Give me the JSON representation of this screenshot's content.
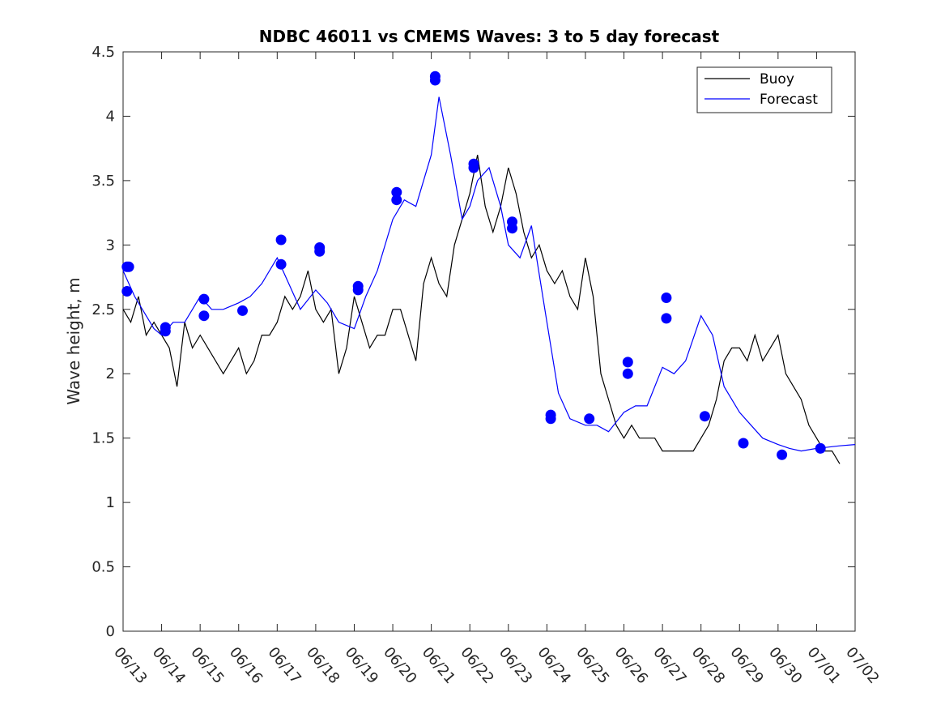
{
  "chart_data": {
    "type": "line",
    "title": "NDBC 46011 vs CMEMS Waves: 3 to 5 day forecast",
    "ylabel": "Wave height, m",
    "xlabel": "",
    "xlim": [
      0,
      19
    ],
    "ylim": [
      0,
      4.5
    ],
    "grid": false,
    "legend_position": "top-right",
    "x_tick_labels": [
      "06/13",
      "06/14",
      "06/15",
      "06/16",
      "06/17",
      "06/18",
      "06/19",
      "06/20",
      "06/21",
      "06/22",
      "06/23",
      "06/24",
      "06/25",
      "06/26",
      "06/27",
      "06/28",
      "06/29",
      "06/30",
      "07/01",
      "07/02"
    ],
    "y_ticks": [
      0,
      0.5,
      1,
      1.5,
      2,
      2.5,
      3,
      3.5,
      4,
      4.5
    ],
    "y_tick_labels": [
      "0",
      "0.5",
      "1",
      "1.5",
      "2",
      "2.5",
      "3",
      "3.5",
      "4",
      "4.5"
    ],
    "legend": [
      "Buoy",
      "Forecast"
    ],
    "colors": {
      "buoy": "#000000",
      "forecast": "#0000ff",
      "marker": "#0000ff"
    },
    "series": [
      {
        "name": "Buoy",
        "x": [
          0,
          0.2,
          0.4,
          0.6,
          0.8,
          1.0,
          1.2,
          1.4,
          1.6,
          1.8,
          2.0,
          2.2,
          2.4,
          2.6,
          2.8,
          3.0,
          3.2,
          3.4,
          3.6,
          3.8,
          4.0,
          4.2,
          4.4,
          4.6,
          4.8,
          5.0,
          5.2,
          5.4,
          5.6,
          5.8,
          6.0,
          6.2,
          6.4,
          6.6,
          6.8,
          7.0,
          7.2,
          7.4,
          7.6,
          7.8,
          8.0,
          8.2,
          8.4,
          8.6,
          8.8,
          9.0,
          9.2,
          9.4,
          9.6,
          9.8,
          10.0,
          10.2,
          10.4,
          10.6,
          10.8,
          11.0,
          11.2,
          11.4,
          11.6,
          11.8,
          12.0,
          12.2,
          12.4,
          12.6,
          12.8,
          13.0,
          13.2,
          13.4,
          13.6,
          13.8,
          14.0,
          14.2,
          14.4,
          14.6,
          14.8,
          15.0,
          15.2,
          15.4,
          15.6,
          15.8,
          16.0,
          16.2,
          16.4,
          16.6,
          16.8,
          17.0,
          17.2,
          17.4,
          17.6,
          17.8,
          18.0,
          18.2,
          18.4,
          18.6
        ],
        "y": [
          2.5,
          2.4,
          2.6,
          2.3,
          2.4,
          2.3,
          2.2,
          1.9,
          2.4,
          2.2,
          2.3,
          2.2,
          2.1,
          2.0,
          2.1,
          2.2,
          2.0,
          2.1,
          2.3,
          2.3,
          2.4,
          2.6,
          2.5,
          2.6,
          2.8,
          2.5,
          2.4,
          2.5,
          2.0,
          2.2,
          2.6,
          2.4,
          2.2,
          2.3,
          2.3,
          2.5,
          2.5,
          2.3,
          2.1,
          2.7,
          2.9,
          2.7,
          2.6,
          3.0,
          3.2,
          3.4,
          3.7,
          3.3,
          3.1,
          3.3,
          3.6,
          3.4,
          3.1,
          2.9,
          3.0,
          2.8,
          2.7,
          2.8,
          2.6,
          2.5,
          2.9,
          2.6,
          2.0,
          1.8,
          1.6,
          1.5,
          1.6,
          1.5,
          1.5,
          1.5,
          1.4,
          1.4,
          1.4,
          1.4,
          1.4,
          1.5,
          1.6,
          1.8,
          2.1,
          2.2,
          2.2,
          2.1,
          2.3,
          2.1,
          2.2,
          2.3,
          2.0,
          1.9,
          1.8,
          1.6,
          1.5,
          1.4,
          1.4,
          1.3
        ]
      },
      {
        "name": "Forecast",
        "x": [
          0,
          0.3,
          0.5,
          0.8,
          1.0,
          1.3,
          1.6,
          2.0,
          2.3,
          2.6,
          3.0,
          3.3,
          3.6,
          4.0,
          4.3,
          4.6,
          5.0,
          5.3,
          5.6,
          6.0,
          6.3,
          6.6,
          7.0,
          7.3,
          7.6,
          8.0,
          8.2,
          8.5,
          8.8,
          9.0,
          9.2,
          9.5,
          9.8,
          10.0,
          10.3,
          10.6,
          11.0,
          11.3,
          11.6,
          12.0,
          12.3,
          12.6,
          13.0,
          13.3,
          13.6,
          14.0,
          14.3,
          14.6,
          15.0,
          15.3,
          15.6,
          16.0,
          16.3,
          16.6,
          17.0,
          17.3,
          17.6,
          18.0,
          18.3,
          18.6,
          19.0
        ],
        "y": [
          2.8,
          2.6,
          2.5,
          2.35,
          2.3,
          2.4,
          2.4,
          2.6,
          2.5,
          2.5,
          2.55,
          2.6,
          2.7,
          2.9,
          2.7,
          2.5,
          2.65,
          2.55,
          2.4,
          2.35,
          2.6,
          2.8,
          3.2,
          3.35,
          3.3,
          3.7,
          4.15,
          3.7,
          3.2,
          3.3,
          3.5,
          3.6,
          3.3,
          3.0,
          2.9,
          3.15,
          2.4,
          1.85,
          1.65,
          1.6,
          1.6,
          1.55,
          1.7,
          1.75,
          1.75,
          2.05,
          2.0,
          2.1,
          2.45,
          2.3,
          1.9,
          1.7,
          1.6,
          1.5,
          1.45,
          1.42,
          1.4,
          1.42,
          1.43,
          1.44,
          1.45
        ]
      }
    ],
    "forecast_markers": {
      "x": [
        0.1,
        0.15,
        0.1,
        1.1,
        1.1,
        2.1,
        2.1,
        3.1,
        4.1,
        4.1,
        5.1,
        5.1,
        6.1,
        6.1,
        7.1,
        7.1,
        8.1,
        8.1,
        9.1,
        9.1,
        10.1,
        10.1,
        11.1,
        11.1,
        12.1,
        13.1,
        13.1,
        14.1,
        14.1,
        15.1,
        16.1,
        17.1,
        18.1
      ],
      "y": [
        2.83,
        2.83,
        2.64,
        2.36,
        2.33,
        2.58,
        2.45,
        2.49,
        3.04,
        2.85,
        2.98,
        2.95,
        2.68,
        2.65,
        3.41,
        3.35,
        4.31,
        4.28,
        3.63,
        3.6,
        3.18,
        3.13,
        1.68,
        1.65,
        1.65,
        2.09,
        2.0,
        2.59,
        2.43,
        1.67,
        1.46,
        1.37,
        1.42
      ]
    }
  }
}
